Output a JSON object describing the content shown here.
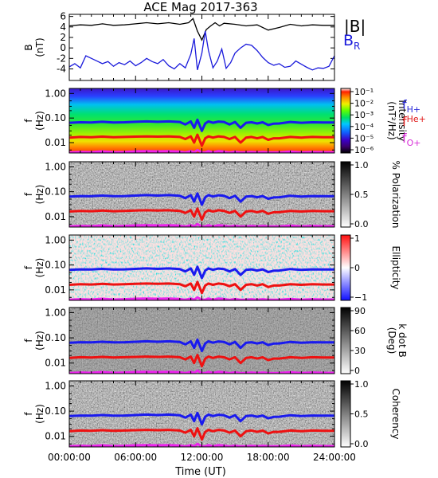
{
  "title": "ACE Mag 2017-363",
  "x_axis": {
    "label": "Time (UT)",
    "ticks": [
      "00:00:00",
      "06:00:00",
      "12:00:00",
      "18:00:00",
      "24:00:00"
    ],
    "range_hours": [
      0,
      24
    ]
  },
  "legend_mag": {
    "b_total": "|B|",
    "b_r_main": "B",
    "b_r_sub": "R",
    "b_total_color": "#000000",
    "b_r_color": "#1a1adb"
  },
  "legend_freq": {
    "items": [
      {
        "main": "f",
        "sub": "H+",
        "color": "#2b2bd9"
      },
      {
        "main": "f",
        "sub": "He+",
        "color": "#e01818"
      },
      {
        "main": "f",
        "sub": "O+",
        "color": "#d82cd8"
      }
    ]
  },
  "line_colors": {
    "h": "#1a1aee",
    "he": "#ee1111",
    "o": "#ee22ee"
  },
  "chart_data": {
    "type": "line",
    "panels": [
      {
        "id": "mag",
        "ylabel_main": "B",
        "ylabel_unit": "(nT)",
        "y_ticks": [
          6,
          4,
          2,
          0,
          -2,
          -4
        ],
        "ylim": [
          -6.2,
          6.4
        ],
        "series": [
          {
            "name": "|B|",
            "color": "#000000",
            "x": [
              0,
              1,
              2,
              3,
              4,
              5,
              6,
              7,
              8,
              9,
              10,
              10.8,
              11.2,
              11.6,
              12,
              12.4,
              12.8,
              13.2,
              13.6,
              14,
              15,
              16,
              17,
              18,
              19,
              20,
              21,
              22,
              23,
              24
            ],
            "y": [
              4.2,
              4.4,
              4.3,
              4.6,
              4.3,
              4.4,
              4.6,
              4.8,
              4.6,
              4.8,
              4.5,
              4.8,
              5.6,
              3.2,
              1.5,
              3.5,
              4.2,
              4.8,
              4.2,
              4.7,
              4.5,
              4.2,
              4.4,
              3.4,
              3.9,
              4.5,
              4.2,
              4.4,
              4.3,
              4.3
            ]
          },
          {
            "name": "B_R",
            "color": "#1a1adb",
            "x": [
              0,
              0.5,
              1,
              1.5,
              2,
              2.5,
              3,
              3.5,
              4,
              4.5,
              5,
              5.5,
              6,
              6.5,
              7,
              7.5,
              8,
              8.5,
              9,
              9.5,
              10,
              10.5,
              11,
              11.3,
              11.6,
              12,
              12.3,
              12.6,
              13,
              13.4,
              13.8,
              14.2,
              14.6,
              15,
              15.5,
              16,
              16.5,
              17,
              17.5,
              18,
              18.5,
              19,
              19.5,
              20,
              20.5,
              21,
              21.5,
              22,
              22.5,
              23,
              23.5,
              24
            ],
            "y": [
              -3.6,
              -3.0,
              -3.8,
              -1.5,
              -2.0,
              -2.5,
              -3.0,
              -2.6,
              -3.5,
              -2.8,
              -3.2,
              -2.5,
              -3.4,
              -2.8,
              -2.0,
              -2.6,
              -3.0,
              -2.2,
              -3.4,
              -4.0,
              -3.0,
              -3.8,
              -1.2,
              1.8,
              -4.2,
              -1.0,
              3.2,
              -0.5,
              -3.8,
              -2.5,
              -0.2,
              -3.9,
              -2.8,
              -1.0,
              0.0,
              0.7,
              0.5,
              -0.5,
              -1.8,
              -2.8,
              -3.3,
              -3.0,
              -3.7,
              -3.5,
              -2.5,
              -3.1,
              -3.7,
              -4.2,
              -3.8,
              -3.9,
              -3.5,
              -1.5
            ]
          }
        ]
      },
      {
        "id": "intensity",
        "type": "heatmap",
        "ylabel_main": "f",
        "ylabel_unit": "(Hz)",
        "y_ticks": [
          "1.00",
          "0.10",
          "0.01"
        ],
        "y_log": true,
        "ylim": [
          0.0038,
          1.6
        ],
        "colorbar": {
          "label": "Intensity",
          "unit": "(nT²/Hz)",
          "ticks": [
            "10⁻¹",
            "10⁻²",
            "10⁻³",
            "10⁻⁴",
            "10⁻⁵",
            "10⁻⁶"
          ],
          "range": [
            1e-06,
            0.1
          ]
        }
      },
      {
        "id": "polarization",
        "type": "heatmap",
        "ylabel_main": "f",
        "ylabel_unit": "(Hz)",
        "y_ticks": [
          "1.00",
          "0.10",
          "0.01"
        ],
        "y_log": true,
        "ylim": [
          0.0038,
          1.6
        ],
        "colorbar": {
          "label": "% Polarization",
          "ticks": [
            "1.0",
            "0.5",
            "0.0"
          ],
          "range": [
            0,
            1
          ]
        }
      },
      {
        "id": "ellipticity",
        "type": "heatmap",
        "ylabel_main": "f",
        "ylabel_unit": "(Hz)",
        "y_ticks": [
          "1.00",
          "0.10",
          "0.01"
        ],
        "y_log": true,
        "ylim": [
          0.0038,
          1.6
        ],
        "colorbar": {
          "label": "Ellipticity",
          "ticks": [
            "1",
            "0",
            "−1"
          ],
          "range": [
            -1,
            1
          ]
        }
      },
      {
        "id": "kdotb",
        "type": "heatmap",
        "ylabel_main": "f",
        "ylabel_unit": "(Hz)",
        "y_ticks": [
          "1.00",
          "0.10",
          "0.01"
        ],
        "y_log": true,
        "ylim": [
          0.0038,
          1.6
        ],
        "colorbar": {
          "label": "k dot B",
          "unit": "(Deg)",
          "ticks": [
            "90",
            "60",
            "30",
            "0"
          ],
          "range": [
            0,
            90
          ]
        }
      },
      {
        "id": "coherency",
        "type": "heatmap",
        "ylabel_main": "f",
        "ylabel_unit": "(Hz)",
        "y_ticks": [
          "1.00",
          "0.10",
          "0.01"
        ],
        "y_log": true,
        "ylim": [
          0.0038,
          1.6
        ],
        "colorbar": {
          "label": "Coherency",
          "ticks": [
            "1.0",
            "0.5",
            "0.0"
          ],
          "range": [
            0,
            1
          ]
        }
      }
    ],
    "cyclotron_lines": {
      "x": [
        0,
        1,
        2,
        3,
        4,
        5,
        6,
        7,
        8,
        9,
        10,
        10.5,
        11,
        11.3,
        11.6,
        12,
        12.3,
        12.6,
        13,
        13.5,
        14,
        14.5,
        15,
        15.5,
        16,
        16.5,
        17,
        17.5,
        18,
        18.5,
        19,
        20,
        21,
        22,
        23,
        24
      ],
      "f_h": [
        0.064,
        0.067,
        0.066,
        0.07,
        0.066,
        0.067,
        0.07,
        0.073,
        0.07,
        0.073,
        0.069,
        0.055,
        0.073,
        0.04,
        0.085,
        0.03,
        0.06,
        0.073,
        0.064,
        0.072,
        0.069,
        0.055,
        0.069,
        0.04,
        0.064,
        0.067,
        0.06,
        0.067,
        0.052,
        0.059,
        0.06,
        0.069,
        0.064,
        0.067,
        0.066,
        0.066
      ],
      "f_he": [
        0.016,
        0.017,
        0.0165,
        0.0175,
        0.0165,
        0.017,
        0.0175,
        0.018,
        0.0175,
        0.018,
        0.017,
        0.014,
        0.018,
        0.01,
        0.021,
        0.0075,
        0.015,
        0.018,
        0.016,
        0.018,
        0.017,
        0.014,
        0.017,
        0.01,
        0.016,
        0.017,
        0.015,
        0.017,
        0.013,
        0.015,
        0.015,
        0.017,
        0.016,
        0.017,
        0.0165,
        0.0165
      ],
      "f_o": [
        0.004,
        0.0042,
        0.0041,
        0.0044,
        0.0041,
        0.0042,
        0.0044,
        0.0045,
        0.0044,
        0.0045,
        0.0043,
        0.004,
        0.0045,
        0.004,
        0.005,
        0.004,
        0.004,
        0.0045,
        0.004,
        0.0045,
        0.0043,
        0.004,
        0.0043,
        0.004,
        0.004,
        0.0042,
        0.004,
        0.0042,
        0.004,
        0.004,
        0.004,
        0.0043,
        0.004,
        0.0042,
        0.0041,
        0.0041
      ]
    }
  }
}
